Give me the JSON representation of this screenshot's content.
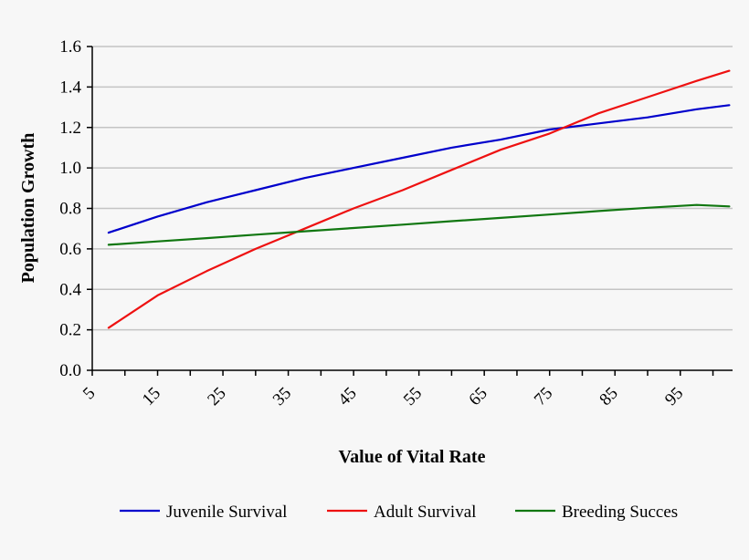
{
  "chart_data": {
    "type": "line",
    "title": "",
    "xlabel": "Value of Vital Rate",
    "ylabel": "Population Growth",
    "xlim": [
      5,
      103
    ],
    "ylim": [
      0,
      1.6
    ],
    "x_ticks": [
      5,
      15,
      25,
      35,
      45,
      55,
      65,
      75,
      85,
      95
    ],
    "x_tick_labels": [
      "5",
      "15",
      "25",
      "35",
      "45",
      "55",
      "65",
      "75",
      "85",
      "95"
    ],
    "y_ticks": [
      0.0,
      0.2,
      0.4,
      0.6,
      0.8,
      1.0,
      1.2,
      1.4,
      1.6
    ],
    "y_tick_labels": [
      "0.0",
      "0.2",
      "0.4",
      "0.6",
      "0.8",
      "1.0",
      "1.2",
      "1.4",
      "1.6"
    ],
    "grid": "horizontal",
    "legend_position": "bottom",
    "x": [
      7.5,
      15,
      22.5,
      30,
      37.5,
      45,
      52.5,
      60,
      67.5,
      75,
      82.5,
      90,
      97.5,
      102.5
    ],
    "series": [
      {
        "name": "Juvenile Survival",
        "color": "#0000cc",
        "values": [
          0.68,
          0.76,
          0.83,
          0.89,
          0.95,
          1.0,
          1.05,
          1.1,
          1.14,
          1.19,
          1.22,
          1.25,
          1.29,
          1.31
        ]
      },
      {
        "name": "Adult Survival",
        "color": "#ee1111",
        "values": [
          0.21,
          0.37,
          0.49,
          0.6,
          0.7,
          0.8,
          0.89,
          0.99,
          1.09,
          1.17,
          1.27,
          1.35,
          1.43,
          1.48
        ]
      },
      {
        "name": "Breeding Succes",
        "color": "#117711",
        "values": [
          0.62,
          0.637,
          0.653,
          0.67,
          0.687,
          0.703,
          0.72,
          0.737,
          0.753,
          0.77,
          0.787,
          0.803,
          0.817,
          0.81
        ]
      }
    ]
  }
}
